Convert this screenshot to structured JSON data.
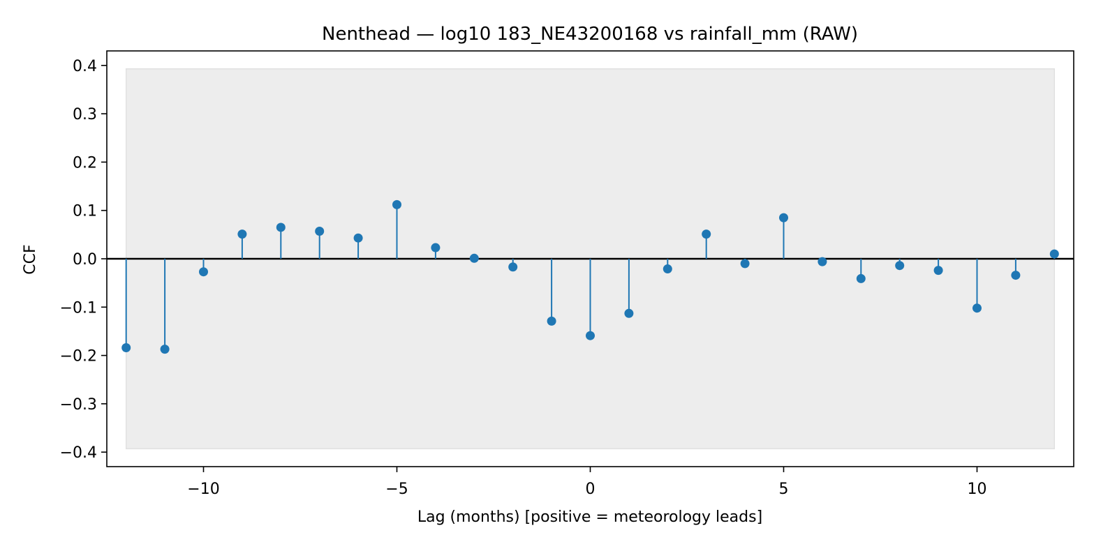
{
  "chart_data": {
    "type": "stem",
    "title": "Nenthead — log10 183_NE43200168 vs rainfall_mm (RAW)",
    "xlabel": "Lag (months)  [positive = meteorology leads]",
    "ylabel": "CCF",
    "xlim": [
      -12.5,
      12.5
    ],
    "ylim": [
      -0.43,
      0.43
    ],
    "x_ticks": [
      -10,
      -5,
      0,
      5,
      10
    ],
    "x_tick_labels": [
      "−10",
      "−5",
      "0",
      "5",
      "10"
    ],
    "y_ticks": [
      0.4,
      0.3,
      0.2,
      0.1,
      0.0,
      -0.1,
      -0.2,
      -0.3,
      -0.4
    ],
    "y_tick_labels": [
      "0.4",
      "0.3",
      "0.2",
      "0.1",
      "0.0",
      "−0.1",
      "−0.2",
      "−0.3",
      "−0.4"
    ],
    "confidence_band": [
      -0.393,
      0.393
    ],
    "grid": false,
    "series": [
      {
        "x": [
          -12,
          -11,
          -10,
          -9,
          -8,
          -7,
          -6,
          -5,
          -4,
          -3,
          -2,
          -1,
          0,
          1,
          2,
          3,
          4,
          5,
          6,
          7,
          8,
          9,
          10,
          11,
          12
        ],
        "values": [
          -0.184,
          -0.187,
          -0.027,
          0.051,
          0.065,
          0.057,
          0.043,
          0.112,
          0.023,
          0.001,
          -0.017,
          -0.129,
          -0.159,
          -0.113,
          -0.021,
          0.051,
          -0.01,
          0.085,
          -0.006,
          -0.041,
          -0.014,
          -0.024,
          -0.102,
          -0.034,
          0.01
        ]
      }
    ],
    "colors": {
      "stem": "#1f77b4",
      "band": "#ededed",
      "zero_line": "#000000"
    }
  }
}
